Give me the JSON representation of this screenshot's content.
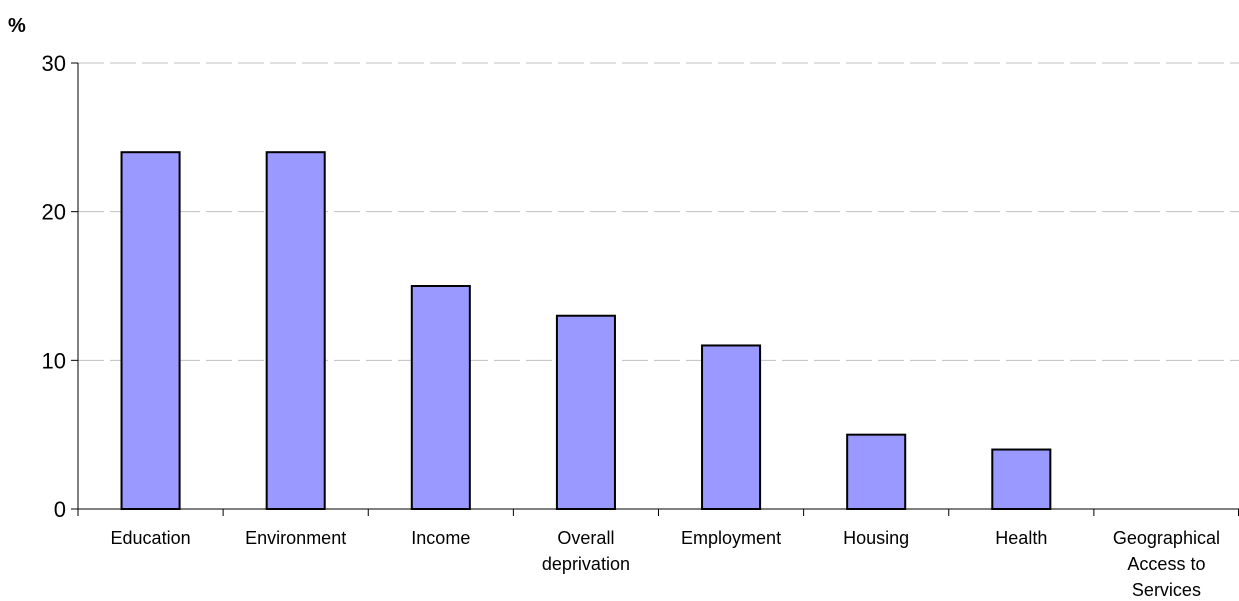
{
  "chart_data": {
    "type": "bar",
    "title": "",
    "xlabel": "",
    "ylabel": "%",
    "ylim": [
      0,
      30
    ],
    "yticks": [
      0,
      10,
      20,
      30
    ],
    "categories": [
      "Education",
      "Environment",
      "Income",
      "Overall deprivation",
      "Employment",
      "Housing",
      "Health",
      "Geographical Access to Services"
    ],
    "category_lines": [
      [
        "Education"
      ],
      [
        "Environment"
      ],
      [
        "Income"
      ],
      [
        "Overall",
        "deprivation"
      ],
      [
        "Employment"
      ],
      [
        "Housing"
      ],
      [
        "Health"
      ],
      [
        "Geographical",
        "Access to",
        "Services"
      ]
    ],
    "values": [
      24,
      24,
      15,
      13,
      11,
      5,
      4,
      0
    ],
    "grid": true,
    "legend": "none",
    "colors": {
      "bar_fill": "#9999ff",
      "bar_stroke": "#000000",
      "grid": "#c0c0c0"
    }
  }
}
